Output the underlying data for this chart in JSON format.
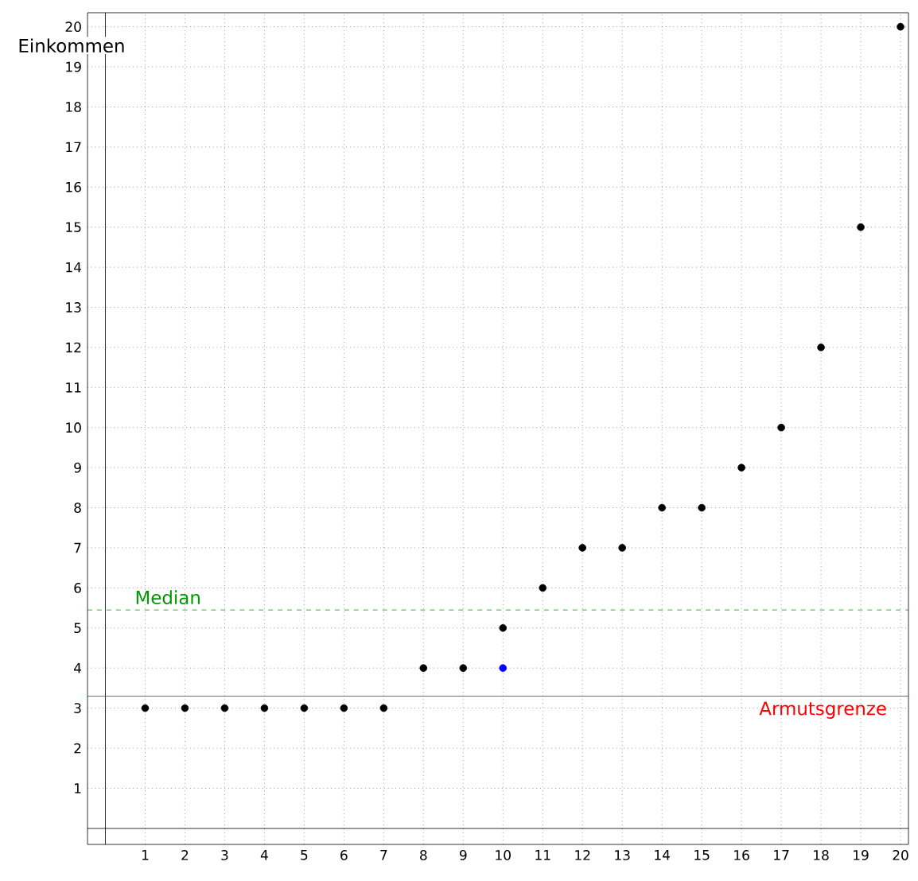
{
  "chart_data": {
    "type": "scatter",
    "ylabel": "Einkommen",
    "series": [
      {
        "color": "#000000",
        "x": [
          1,
          2,
          3,
          4,
          5,
          6,
          7,
          8,
          9,
          10,
          11,
          12,
          13,
          14,
          15,
          16,
          17,
          18,
          19,
          20
        ],
        "values": [
          3,
          3,
          3,
          3,
          3,
          3,
          3,
          4,
          4,
          5,
          6,
          7,
          7,
          8,
          8,
          9,
          10,
          12,
          15,
          20
        ]
      },
      {
        "color": "#0000ff",
        "x": [
          10
        ],
        "values": [
          4
        ]
      }
    ],
    "xlim": [
      -0.45,
      20.2
    ],
    "ylim": [
      -0.4,
      20.35
    ],
    "xticks": [
      1,
      2,
      3,
      4,
      5,
      6,
      7,
      8,
      9,
      10,
      11,
      12,
      13,
      14,
      15,
      16,
      17,
      18,
      19,
      20
    ],
    "yticks": [
      1,
      2,
      3,
      4,
      5,
      6,
      7,
      8,
      9,
      10,
      11,
      12,
      13,
      14,
      15,
      16,
      17,
      18,
      19,
      20
    ],
    "grid": true,
    "ref_lines": [
      {
        "axis": "y",
        "value": 5.45,
        "label": "Median",
        "color": "#009900",
        "line_style": "dashed"
      },
      {
        "axis": "y",
        "value": 3.3,
        "label": "Armutsgrenze",
        "color": "#ff0000",
        "line_style": "solid"
      }
    ]
  }
}
